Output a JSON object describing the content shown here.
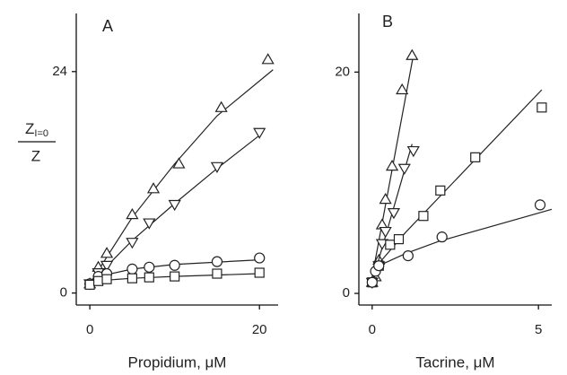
{
  "chart_data": [
    {
      "type": "scatter",
      "title": "A",
      "xlabel": "Propidium, μM",
      "ylabel": {
        "numerator": "Z",
        "numerator_sub": "I=0",
        "denominator": "Z"
      },
      "xlim": [
        -1.6,
        22.2
      ],
      "ylim": [
        -1.3,
        30.3
      ],
      "xticks": [
        0,
        20
      ],
      "yticks": [
        0,
        24
      ],
      "series": [
        {
          "marker": "triangle-up",
          "color": "#222",
          "x": [
            0,
            1,
            2,
            5,
            7.5,
            10.5,
            15.5,
            21
          ],
          "values": [
            1,
            2.8,
            4.3,
            8.5,
            11.3,
            14,
            20.1,
            25.3
          ],
          "fit": {
            "x": [
              0,
              2,
              5,
              10,
              15,
              21.6
            ],
            "values": [
              1,
              3.9,
              8.2,
              14,
              19.2,
              24.2
            ]
          }
        },
        {
          "marker": "triangle-down",
          "color": "#222",
          "x": [
            0,
            1,
            2,
            5,
            7,
            10,
            15,
            20
          ],
          "values": [
            1,
            2.2,
            3,
            5.5,
            7.6,
            9.6,
            13.7,
            17.4
          ],
          "fit": {
            "x": [
              0,
              2,
              5,
              10,
              15,
              20.3
            ],
            "values": [
              1,
              2.9,
              5.7,
              9.7,
              13.5,
              17.3
            ]
          }
        },
        {
          "marker": "circle",
          "color": "#222",
          "x": [
            0,
            1,
            2,
            5,
            7,
            10,
            15,
            20
          ],
          "values": [
            1,
            1.8,
            2.1,
            2.6,
            2.8,
            3,
            3.4,
            3.8
          ],
          "fit": {
            "x": [
              0,
              1,
              2,
              5,
              10,
              20
            ],
            "values": [
              1,
              1.6,
              2,
              2.6,
              3.1,
              3.6
            ]
          }
        },
        {
          "marker": "square",
          "color": "#222",
          "x": [
            0,
            1,
            2,
            5,
            7,
            10,
            15,
            20
          ],
          "values": [
            0.9,
            1.3,
            1.5,
            1.6,
            1.7,
            1.8,
            2.1,
            2.2
          ],
          "fit": {
            "x": [
              0,
              1,
              2,
              5,
              10,
              20
            ],
            "values": [
              0.9,
              1.2,
              1.4,
              1.6,
              1.8,
              2.1
            ]
          }
        }
      ]
    },
    {
      "type": "scatter",
      "title": "B",
      "xlabel": "Tacrine, μM",
      "xlim": [
        -0.4,
        5.4
      ],
      "ylim": [
        -1.05,
        25.3
      ],
      "xticks": [
        0,
        5
      ],
      "yticks": [
        0,
        20
      ],
      "series": [
        {
          "marker": "triangle-up",
          "color": "#222",
          "x": [
            0,
            0.1,
            0.2,
            0.3,
            0.4,
            0.6,
            0.9,
            1.2
          ],
          "values": [
            1,
            1.5,
            3,
            6.2,
            8.5,
            11.5,
            18.4,
            21.5
          ],
          "fit": {
            "x": [
              0,
              1.25
            ],
            "values": [
              1.5,
              21.7
            ]
          }
        },
        {
          "marker": "triangle-down",
          "color": "#222",
          "x": [
            0,
            0.2,
            0.3,
            0.4,
            0.65,
            0.97,
            1.24
          ],
          "values": [
            1,
            2.5,
            4.5,
            5.6,
            7.3,
            11.3,
            12.9
          ],
          "fit": {
            "x": [
              0,
              1.2
            ],
            "values": [
              1,
              13.5
            ]
          }
        },
        {
          "marker": "square",
          "color": "#222",
          "x": [
            0,
            0.2,
            0.54,
            0.8,
            1.54,
            2.05,
            3.1,
            5.1
          ],
          "values": [
            1,
            2.5,
            4.4,
            4.9,
            7,
            9.3,
            12.3,
            16.8
          ],
          "fit": {
            "x": [
              0,
              0.2,
              1,
              5.1
            ],
            "values": [
              1,
              2.7,
              5.5,
              18.4
            ]
          }
        },
        {
          "marker": "circle",
          "color": "#222",
          "x": [
            0,
            0.1,
            0.2,
            1.08,
            2.1,
            5.05
          ],
          "values": [
            1,
            2,
            2.5,
            3.4,
            5.1,
            8
          ],
          "fit": {
            "x": [
              0,
              0.2,
              1,
              2,
              5.4
            ],
            "values": [
              1,
              2.5,
              3.6,
              4.7,
              7.6
            ]
          }
        }
      ]
    }
  ]
}
